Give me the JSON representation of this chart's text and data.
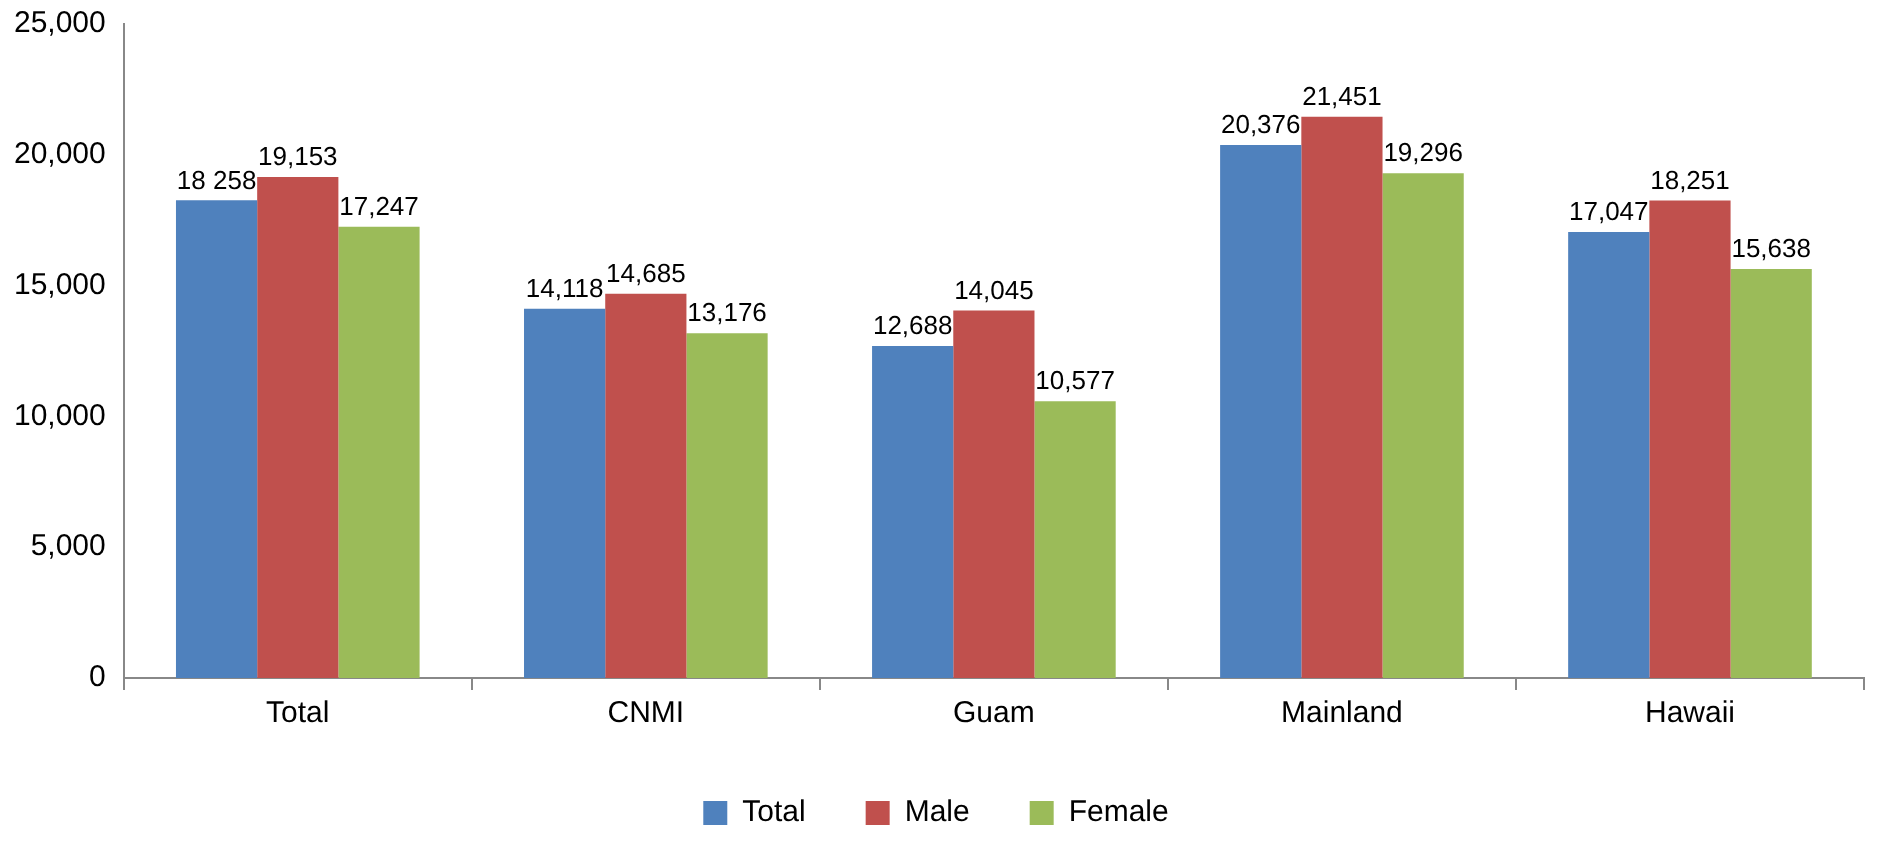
{
  "chart_data": {
    "type": "bar",
    "categories": [
      "Total",
      "CNMI",
      "Guam",
      "Mainland",
      "Hawaii"
    ],
    "series": [
      {
        "name": "Total",
        "color": "#4f81bd",
        "values": [
          18258,
          14118,
          12688,
          20376,
          17047
        ],
        "value_labels": [
          "18 258",
          "14,118",
          "12,688",
          "20,376",
          "17,047"
        ]
      },
      {
        "name": "Male",
        "color": "#c0504d",
        "values": [
          19153,
          14685,
          14045,
          21451,
          18251
        ],
        "value_labels": [
          "19,153",
          "14,685",
          "14,045",
          "21,451",
          "18,251"
        ]
      },
      {
        "name": "Female",
        "color": "#9bbb59",
        "values": [
          17247,
          13176,
          10577,
          19296,
          15638
        ],
        "value_labels": [
          "17,247",
          "13,176",
          "10,577",
          "19,296",
          "15,638"
        ]
      }
    ],
    "ylim": [
      0,
      25000
    ],
    "yticks": [
      {
        "value": 0,
        "label": "0"
      },
      {
        "value": 5000,
        "label": "5,000"
      },
      {
        "value": 10000,
        "label": "10,000"
      },
      {
        "value": 15000,
        "label": "15,000"
      },
      {
        "value": 20000,
        "label": "20,000"
      },
      {
        "value": 25000,
        "label": "25,000"
      }
    ],
    "grid": false,
    "legend": "bottom"
  }
}
